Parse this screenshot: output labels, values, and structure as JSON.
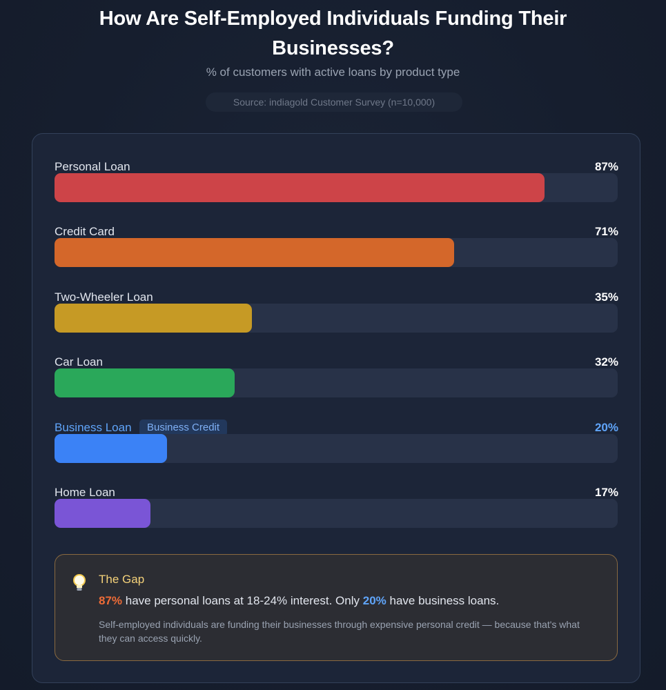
{
  "header": {
    "title": "How Are Self-Employed Individuals Funding Their Businesses?",
    "subtitle": "% of customers with active loans by product type",
    "source": "Source: indiagold Customer Survey (n=10,000)"
  },
  "rows": [
    {
      "label": "Personal Loan",
      "value_label": "87%",
      "value": 87,
      "color": "#cd4448",
      "tag": null,
      "highlight": false
    },
    {
      "label": "Credit Card",
      "value_label": "71%",
      "value": 71,
      "color": "#d4672a",
      "tag": null,
      "highlight": false
    },
    {
      "label": "Two-Wheeler Loan",
      "value_label": "35%",
      "value": 35,
      "color": "#c69a25",
      "tag": null,
      "highlight": false
    },
    {
      "label": "Car Loan",
      "value_label": "32%",
      "value": 32,
      "color": "#2aa85a",
      "tag": null,
      "highlight": false
    },
    {
      "label": "Business Loan",
      "value_label": "20%",
      "value": 20,
      "color": "#3b82f6",
      "tag": "Business Credit",
      "highlight": true
    },
    {
      "label": "Home Loan",
      "value_label": "17%",
      "value": 17,
      "color": "#7a55d6",
      "tag": null,
      "highlight": false
    }
  ],
  "insight": {
    "icon": "lightbulb-icon",
    "title": "The Gap",
    "stat_high": "87%",
    "text_mid": " have personal loans at 18-24% interest. Only ",
    "stat_low": "20%",
    "text_end": " have business loans.",
    "note": "Self-employed individuals are funding their businesses through expensive personal credit — because that's what they can access quickly."
  },
  "chart_data": {
    "type": "bar",
    "orientation": "horizontal",
    "title": "How Are Self-Employed Individuals Funding Their Businesses?",
    "subtitle": "% of customers with active loans by product type",
    "source": "Source: indiagold Customer Survey (n=10,000)",
    "categories": [
      "Personal Loan",
      "Credit Card",
      "Two-Wheeler Loan",
      "Car Loan",
      "Business Loan",
      "Home Loan"
    ],
    "values": [
      87,
      71,
      35,
      32,
      20,
      17
    ],
    "unit": "%",
    "colors": [
      "#cd4448",
      "#d4672a",
      "#c69a25",
      "#2aa85a",
      "#3b82f6",
      "#7a55d6"
    ],
    "xlim": [
      0,
      100
    ],
    "annotations": [
      {
        "category": "Business Loan",
        "text": "Business Credit"
      }
    ],
    "grid": false,
    "legend": null
  }
}
